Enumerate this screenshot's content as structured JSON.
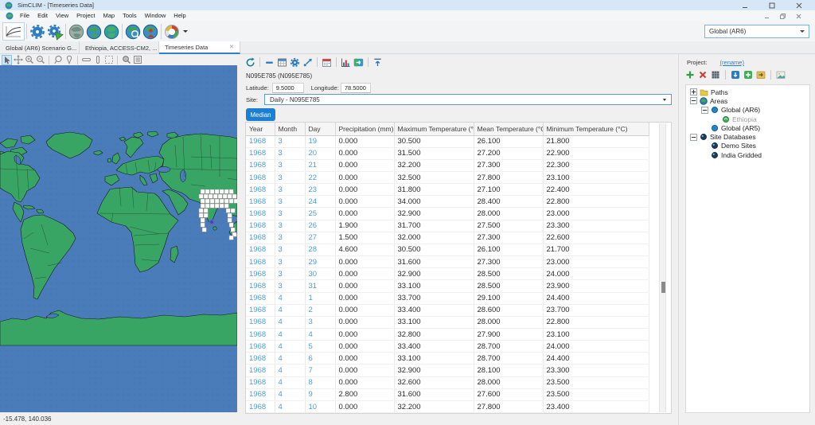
{
  "window": {
    "title": "SimCLIM - [Timeseries Data]"
  },
  "menu": {
    "items": [
      "File",
      "Edit",
      "View",
      "Project",
      "Map",
      "Tools",
      "Window",
      "Help"
    ]
  },
  "toolbar": {
    "scenario_selector_value": "Global (AR6)"
  },
  "tabs": [
    {
      "label": "Global (AR6) Scenario G...",
      "active": false
    },
    {
      "label": "Ethiopia, ACCESS-CM2, ...",
      "active": false
    },
    {
      "label": "Timeseries Data",
      "active": true
    }
  ],
  "map": {
    "status_coordinates": "-15.478, 140.036",
    "colors": {
      "ocean": "#4a7cba",
      "land": "#39a565"
    }
  },
  "timeseries": {
    "site_title": "N095E785 (N095E785)",
    "latitude_label": "Latitude:",
    "latitude_value": "9.5000",
    "longitude_label": "Longitude:",
    "longitude_value": "78.5000",
    "site_label": "Site:",
    "site_value": "Daily  -  N095E785",
    "median_button_label": "Median",
    "table": {
      "columns": [
        "Year",
        "Month",
        "Day",
        "Precipitation (mm)",
        "Maximum Temperature (°C)",
        "Mean Temperature (°C)",
        "Minimum Temperature (°C)"
      ],
      "rows": [
        [
          "1968",
          "3",
          "19",
          "0.000",
          "30.500",
          "26.100",
          "21.800"
        ],
        [
          "1968",
          "3",
          "20",
          "0.000",
          "31.500",
          "27.200",
          "22.900"
        ],
        [
          "1968",
          "3",
          "21",
          "0.000",
          "32.200",
          "27.300",
          "22.300"
        ],
        [
          "1968",
          "3",
          "22",
          "0.000",
          "32.500",
          "27.800",
          "23.100"
        ],
        [
          "1968",
          "3",
          "23",
          "0.000",
          "31.800",
          "27.100",
          "22.400"
        ],
        [
          "1968",
          "3",
          "24",
          "0.000",
          "34.000",
          "28.400",
          "22.800"
        ],
        [
          "1968",
          "3",
          "25",
          "0.000",
          "32.900",
          "28.000",
          "23.000"
        ],
        [
          "1968",
          "3",
          "26",
          "1.900",
          "31.700",
          "27.500",
          "23.300"
        ],
        [
          "1968",
          "3",
          "27",
          "1.500",
          "32.000",
          "27.300",
          "22.600"
        ],
        [
          "1968",
          "3",
          "28",
          "4.600",
          "30.500",
          "26.100",
          "21.700"
        ],
        [
          "1968",
          "3",
          "29",
          "0.000",
          "31.600",
          "27.300",
          "23.000"
        ],
        [
          "1968",
          "3",
          "30",
          "0.000",
          "32.900",
          "28.500",
          "24.000"
        ],
        [
          "1968",
          "3",
          "31",
          "0.000",
          "33.100",
          "28.500",
          "23.900"
        ],
        [
          "1968",
          "4",
          "1",
          "0.000",
          "33.700",
          "29.100",
          "24.400"
        ],
        [
          "1968",
          "4",
          "2",
          "0.000",
          "33.400",
          "28.600",
          "23.700"
        ],
        [
          "1968",
          "4",
          "3",
          "0.000",
          "33.100",
          "28.000",
          "22.800"
        ],
        [
          "1968",
          "4",
          "4",
          "0.000",
          "32.800",
          "27.900",
          "23.100"
        ],
        [
          "1968",
          "4",
          "5",
          "0.000",
          "33.400",
          "28.700",
          "24.000"
        ],
        [
          "1968",
          "4",
          "6",
          "0.000",
          "33.100",
          "28.700",
          "24.400"
        ],
        [
          "1968",
          "4",
          "7",
          "0.000",
          "32.900",
          "28.100",
          "23.300"
        ],
        [
          "1968",
          "4",
          "8",
          "0.000",
          "32.600",
          "28.000",
          "23.500"
        ],
        [
          "1968",
          "4",
          "9",
          "2.800",
          "31.600",
          "27.600",
          "23.500"
        ],
        [
          "1968",
          "4",
          "10",
          "0.000",
          "32.200",
          "27.800",
          "23.400"
        ]
      ]
    }
  },
  "project_panel": {
    "label": "Project:",
    "rename_link": "(rename)",
    "tree": [
      {
        "label": "Paths",
        "depth": 0,
        "icon": "folder",
        "expander": "+"
      },
      {
        "label": "Areas",
        "depth": 0,
        "icon": "globe",
        "expander": "-"
      },
      {
        "label": "Global (AR6)",
        "depth": 1,
        "icon": "area_blue",
        "expander": "-"
      },
      {
        "label": "Ethiopia",
        "depth": 2,
        "icon": "area_green",
        "dim": true
      },
      {
        "label": "Global (AR5)",
        "depth": 1,
        "icon": "area_blue"
      },
      {
        "label": "Site Databases",
        "depth": 0,
        "icon": "db",
        "expander": "-"
      },
      {
        "label": "Demo Sites",
        "depth": 1,
        "icon": "db"
      },
      {
        "label": "India Gridded",
        "depth": 1,
        "icon": "db"
      }
    ]
  }
}
